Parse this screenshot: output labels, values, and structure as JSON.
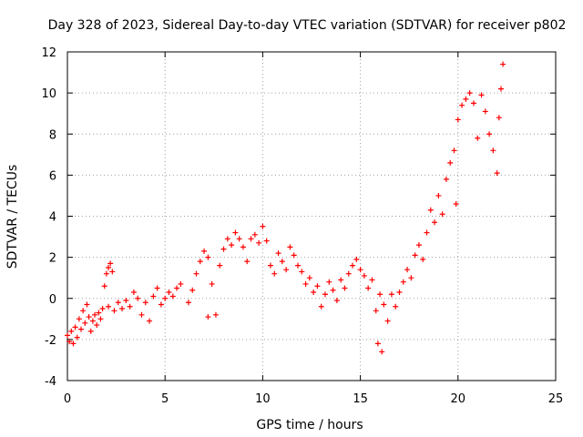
{
  "chart_data": {
    "type": "scatter",
    "title": "Day 328 of 2023, Sidereal Day-to-day VTEC variation (SDTVAR) for receiver p802",
    "xlabel": "GPS time / hours",
    "ylabel": "SDTVAR / TECUs",
    "xlim": [
      0,
      25
    ],
    "ylim": [
      -4,
      12
    ],
    "xticks": [
      "0",
      "5",
      "10",
      "15",
      "20",
      "25"
    ],
    "yticks": [
      "-4",
      "-2",
      "0",
      "2",
      "4",
      "6",
      "8",
      "10",
      "12"
    ],
    "grid": true,
    "marker": "+",
    "color": "#ff0000",
    "series": [
      {
        "name": "p802",
        "points": [
          [
            0.0,
            -1.8
          ],
          [
            0.1,
            -2.1
          ],
          [
            0.2,
            -1.6
          ],
          [
            0.3,
            -2.2
          ],
          [
            0.4,
            -1.4
          ],
          [
            0.5,
            -1.9
          ],
          [
            0.6,
            -1.0
          ],
          [
            0.7,
            -1.5
          ],
          [
            0.8,
            -0.6
          ],
          [
            0.9,
            -1.2
          ],
          [
            1.0,
            -0.3
          ],
          [
            1.1,
            -0.9
          ],
          [
            1.2,
            -1.6
          ],
          [
            1.3,
            -1.1
          ],
          [
            1.4,
            -0.8
          ],
          [
            1.5,
            -1.3
          ],
          [
            1.6,
            -0.7
          ],
          [
            1.7,
            -1.0
          ],
          [
            1.8,
            -0.5
          ],
          [
            1.9,
            0.6
          ],
          [
            2.0,
            1.2
          ],
          [
            2.1,
            1.5
          ],
          [
            2.2,
            1.7
          ],
          [
            2.3,
            1.3
          ],
          [
            2.1,
            -0.4
          ],
          [
            2.4,
            -0.6
          ],
          [
            2.6,
            -0.2
          ],
          [
            2.8,
            -0.5
          ],
          [
            3.0,
            -0.1
          ],
          [
            3.2,
            -0.4
          ],
          [
            3.4,
            0.3
          ],
          [
            3.6,
            0.0
          ],
          [
            3.8,
            -0.8
          ],
          [
            4.0,
            -0.2
          ],
          [
            4.2,
            -1.1
          ],
          [
            4.4,
            0.1
          ],
          [
            4.6,
            0.5
          ],
          [
            4.8,
            -0.3
          ],
          [
            5.0,
            0.0
          ],
          [
            5.2,
            0.3
          ],
          [
            5.4,
            0.1
          ],
          [
            5.6,
            0.5
          ],
          [
            5.8,
            0.7
          ],
          [
            6.2,
            -0.2
          ],
          [
            6.4,
            0.4
          ],
          [
            6.6,
            1.2
          ],
          [
            6.8,
            1.8
          ],
          [
            7.0,
            2.3
          ],
          [
            7.2,
            2.0
          ],
          [
            7.4,
            0.7
          ],
          [
            7.2,
            -0.9
          ],
          [
            7.6,
            -0.8
          ],
          [
            7.8,
            1.6
          ],
          [
            8.0,
            2.4
          ],
          [
            8.2,
            2.9
          ],
          [
            8.4,
            2.6
          ],
          [
            8.6,
            3.2
          ],
          [
            8.8,
            2.9
          ],
          [
            9.0,
            2.5
          ],
          [
            9.2,
            1.8
          ],
          [
            9.4,
            2.9
          ],
          [
            9.6,
            3.1
          ],
          [
            9.8,
            2.7
          ],
          [
            10.0,
            3.5
          ],
          [
            10.2,
            2.8
          ],
          [
            10.4,
            1.6
          ],
          [
            10.6,
            1.2
          ],
          [
            10.8,
            2.2
          ],
          [
            11.0,
            1.8
          ],
          [
            11.2,
            1.4
          ],
          [
            11.4,
            2.5
          ],
          [
            11.6,
            2.1
          ],
          [
            11.8,
            1.6
          ],
          [
            12.0,
            1.3
          ],
          [
            12.2,
            0.7
          ],
          [
            12.4,
            1.0
          ],
          [
            12.6,
            0.3
          ],
          [
            12.8,
            0.6
          ],
          [
            13.0,
            -0.4
          ],
          [
            13.2,
            0.2
          ],
          [
            13.4,
            0.8
          ],
          [
            13.6,
            0.4
          ],
          [
            13.8,
            -0.1
          ],
          [
            14.0,
            0.9
          ],
          [
            14.2,
            0.5
          ],
          [
            14.4,
            1.2
          ],
          [
            14.6,
            1.6
          ],
          [
            14.8,
            1.9
          ],
          [
            15.0,
            1.4
          ],
          [
            15.2,
            1.1
          ],
          [
            15.4,
            0.5
          ],
          [
            15.6,
            0.9
          ],
          [
            15.8,
            -0.6
          ],
          [
            16.0,
            0.2
          ],
          [
            15.9,
            -2.2
          ],
          [
            16.1,
            -2.6
          ],
          [
            16.2,
            -0.3
          ],
          [
            16.4,
            -1.1
          ],
          [
            16.6,
            0.2
          ],
          [
            16.8,
            -0.4
          ],
          [
            17.0,
            0.3
          ],
          [
            17.2,
            0.8
          ],
          [
            17.4,
            1.4
          ],
          [
            17.6,
            1.0
          ],
          [
            17.8,
            2.1
          ],
          [
            18.0,
            2.6
          ],
          [
            18.2,
            1.9
          ],
          [
            18.4,
            3.2
          ],
          [
            18.6,
            4.3
          ],
          [
            18.8,
            3.7
          ],
          [
            19.0,
            5.0
          ],
          [
            19.2,
            4.1
          ],
          [
            19.4,
            5.8
          ],
          [
            19.6,
            6.6
          ],
          [
            19.8,
            7.2
          ],
          [
            19.9,
            4.6
          ],
          [
            20.0,
            8.7
          ],
          [
            20.2,
            9.4
          ],
          [
            20.4,
            9.7
          ],
          [
            20.6,
            10.0
          ],
          [
            20.8,
            9.5
          ],
          [
            21.0,
            7.8
          ],
          [
            21.2,
            9.9
          ],
          [
            21.4,
            9.1
          ],
          [
            21.6,
            8.0
          ],
          [
            21.8,
            7.2
          ],
          [
            22.0,
            6.1
          ],
          [
            22.1,
            8.8
          ],
          [
            22.2,
            10.2
          ],
          [
            22.3,
            11.4
          ]
        ]
      }
    ]
  }
}
